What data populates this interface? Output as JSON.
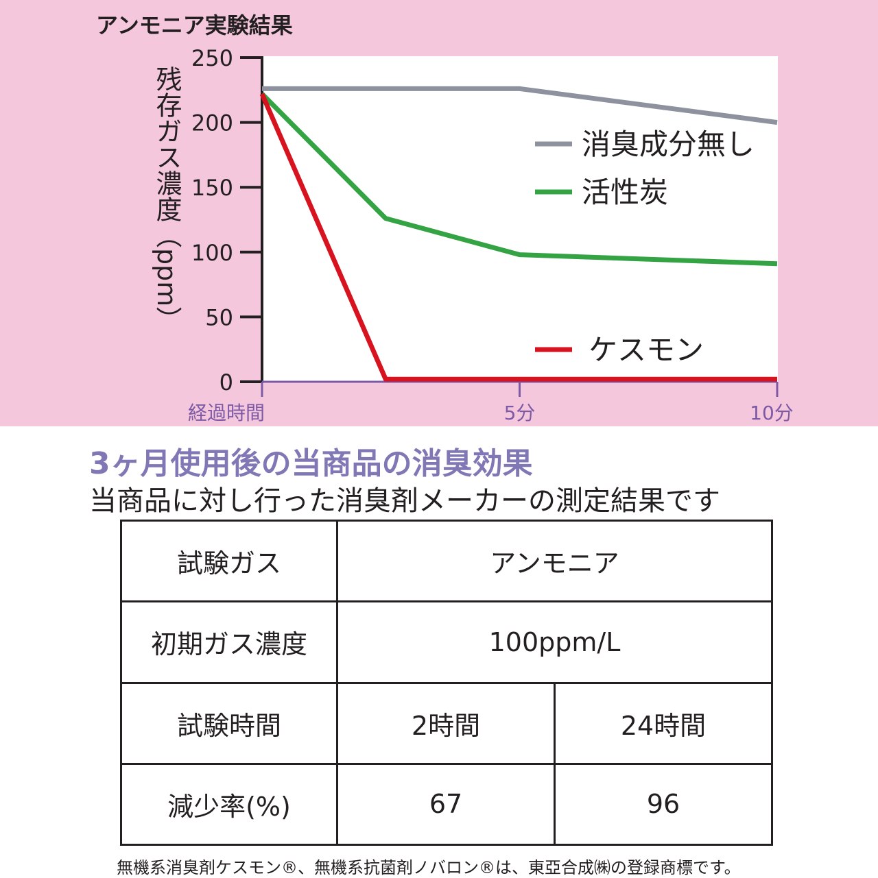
{
  "chart_data": {
    "type": "line",
    "title": "アンモニア実験結果",
    "ylabel": "残存ガス濃度（ppm）",
    "xlabel": "経過時間",
    "ylim": [
      0,
      250
    ],
    "yticks": [
      0,
      50,
      100,
      150,
      200,
      250
    ],
    "xlim": [
      0,
      10
    ],
    "xticks": [
      {
        "value": 0,
        "label": "経過時間"
      },
      {
        "value": 5,
        "label": "5分"
      },
      {
        "value": 10,
        "label": "10分"
      }
    ],
    "grid": false,
    "legend_position": "right",
    "series": [
      {
        "name": "消臭成分無し",
        "color": "#8e919e",
        "x": [
          0,
          5,
          10
        ],
        "values": [
          226,
          226,
          200
        ]
      },
      {
        "name": "活性炭",
        "color": "#34a344",
        "x": [
          0,
          2.4,
          5,
          10
        ],
        "values": [
          222,
          126,
          98,
          91
        ]
      },
      {
        "name": "ケスモン",
        "color": "#d7131f",
        "x": [
          0,
          2.4,
          5,
          10
        ],
        "values": [
          222,
          2,
          2,
          2
        ]
      }
    ],
    "axis_color": "#231f20",
    "tick_label_color": "#7c5aa6",
    "plot_background": "#ffffff",
    "panel_background": "#f4c7dc"
  },
  "section": {
    "title": "3ヶ月使用後の当商品の消臭効果",
    "subtitle": "当商品に対し行った消臭剤メーカーの測定結果です"
  },
  "table": {
    "gas_label": "試験ガス",
    "gas_value": "アンモニア",
    "conc_label": "初期ガス濃度",
    "conc_value": "100ppm/L",
    "time_label": "試験時間",
    "time_values": [
      "2時間",
      "24時間"
    ],
    "rate_label": "減少率(%)",
    "rate_values": [
      "67",
      "96"
    ]
  },
  "footnote": "無機系消臭剤ケスモン®、無機系抗菌剤ノバロン®は、東亞合成㈱の登録商標です。"
}
